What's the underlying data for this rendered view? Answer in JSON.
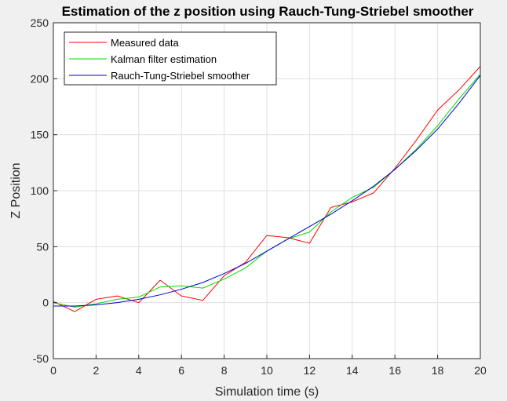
{
  "chart_data": {
    "type": "line",
    "title": "Estimation of the z position using Rauch-Tung-Striebel smoother",
    "xlabel": "Simulation time (s)",
    "ylabel": "Z Position",
    "xlim": [
      0,
      20
    ],
    "ylim": [
      -50,
      250
    ],
    "xticks": [
      "0",
      "2",
      "4",
      "6",
      "8",
      "10",
      "12",
      "14",
      "16",
      "18",
      "20"
    ],
    "yticks": [
      "-50",
      "0",
      "50",
      "100",
      "150",
      "200",
      "250"
    ],
    "grid": true,
    "legend_location": "top-left",
    "x": [
      0,
      1,
      2,
      3,
      4,
      5,
      6,
      7,
      8,
      9,
      10,
      11,
      12,
      13,
      14,
      15,
      16,
      17,
      18,
      19,
      20
    ],
    "series": [
      {
        "name": "Measured data",
        "color": "#ff0000",
        "values": [
          1,
          -8,
          3,
          6,
          0,
          20,
          6,
          2,
          24,
          36,
          60,
          58,
          53,
          85,
          90,
          98,
          120,
          145,
          172,
          190,
          211
        ]
      },
      {
        "name": "Kalman filter estimation",
        "color": "#00dd00",
        "values": [
          0,
          -4,
          -1,
          3,
          5,
          14,
          15,
          13,
          21,
          31,
          46,
          57,
          63,
          81,
          94,
          103,
          119,
          137,
          158,
          182,
          204
        ]
      },
      {
        "name": "Rauch-Tung-Striebel smoother",
        "color": "#0000cc",
        "values": [
          -3,
          -3,
          -2,
          0,
          3,
          7,
          12,
          18,
          26,
          35,
          46,
          57,
          68,
          79,
          91,
          104,
          119,
          136,
          155,
          178,
          203
        ]
      }
    ]
  }
}
